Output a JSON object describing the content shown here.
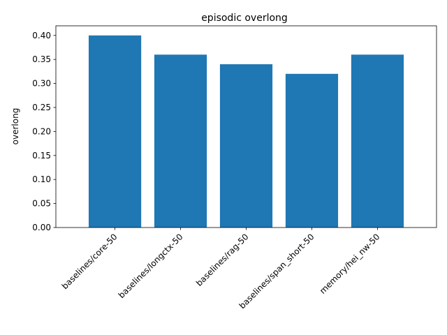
{
  "chart_data": {
    "type": "bar",
    "title": "episodic overlong",
    "xlabel": "",
    "ylabel": "overlong",
    "categories": [
      "baselines/core-50",
      "baselines/longctx-50",
      "baselines/rag-50",
      "baselines/span_short-50",
      "memory/hei_nw-50"
    ],
    "values": [
      0.4,
      0.36,
      0.34,
      0.32,
      0.36
    ],
    "ylim": [
      0,
      0.42
    ],
    "yticks": [
      0.0,
      0.05,
      0.1,
      0.15,
      0.2,
      0.25,
      0.3,
      0.35,
      0.4
    ],
    "ytick_labels": [
      "0.00",
      "0.05",
      "0.10",
      "0.15",
      "0.20",
      "0.25",
      "0.30",
      "0.35",
      "0.40"
    ],
    "grid": false,
    "legend": "none",
    "bar_color": "#1f77b4"
  }
}
